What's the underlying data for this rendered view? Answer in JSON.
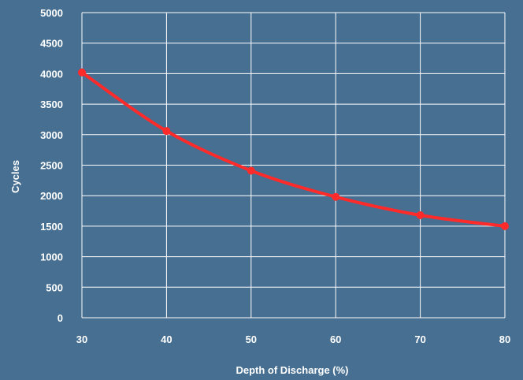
{
  "chart_data": {
    "type": "line",
    "title": "",
    "xlabel": "Depth of Discharge (%)",
    "ylabel": "Cycles",
    "x": [
      30,
      40,
      50,
      60,
      70,
      80
    ],
    "series": [
      {
        "values": [
          4020,
          3060,
          2410,
          1980,
          1680,
          1500
        ],
        "color": "#ff2a2a"
      }
    ],
    "xlim": [
      30,
      80
    ],
    "ylim": [
      0,
      5000
    ],
    "x_ticks": [
      "30",
      "40",
      "50",
      "60",
      "70",
      "80"
    ],
    "y_ticks": [
      "0",
      "500",
      "1000",
      "1500",
      "2000",
      "2500",
      "3000",
      "3500",
      "4000",
      "4500",
      "5000"
    ],
    "grid": true,
    "legend": "none",
    "background_color": "#476f92",
    "grid_color": "#ffffff"
  }
}
